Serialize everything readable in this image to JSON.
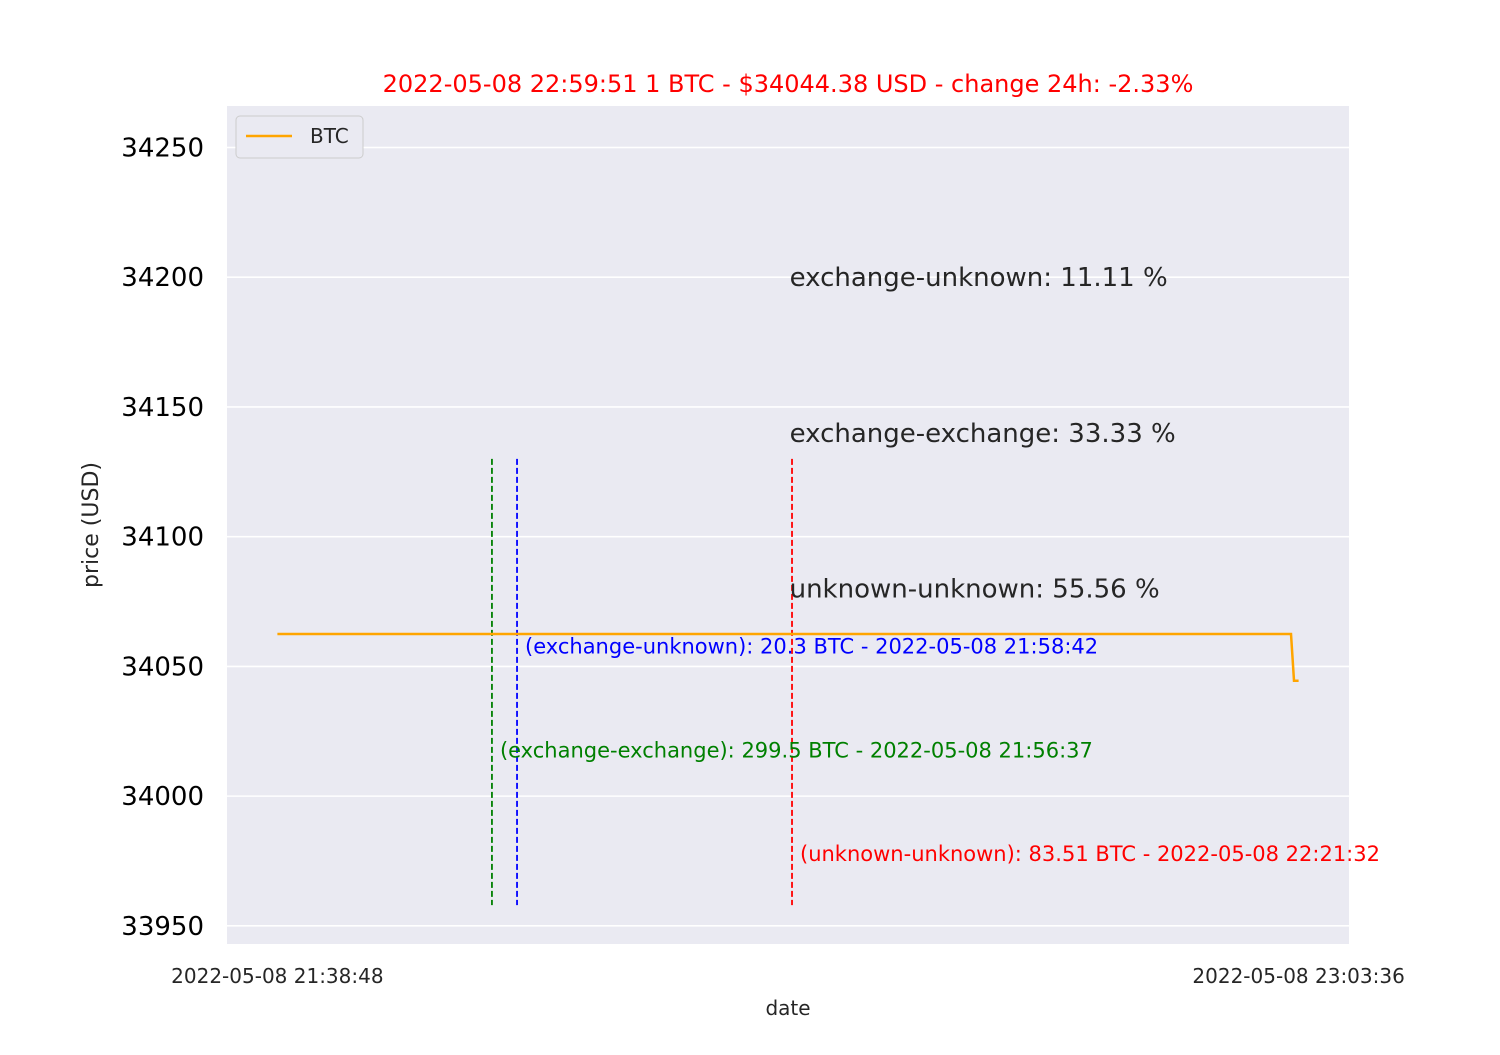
{
  "title": "2022-05-08  22:59:51    1 BTC - $34044.38 USD - change 24h: -2.33%",
  "colors": {
    "title": "#ff0000",
    "plot_bg": "#eaeaf2",
    "grid": "#ffffff",
    "btc": "#ffa500",
    "text": "#262626"
  },
  "chart_data": {
    "type": "line",
    "title": "2022-05-08  22:59:51    1 BTC - $34044.38 USD - change 24h: -2.33%",
    "xlabel": "date",
    "ylabel": "price (USD)",
    "ylim": [
      33943,
      34266
    ],
    "y_ticks": [
      33950,
      34000,
      34050,
      34100,
      34150,
      34200,
      34250
    ],
    "x_tick_labels": [
      "2022-05-08  21:38:48",
      "2022-05-08  23:03:36"
    ],
    "xlim": [
      "2022-05-08 21:34:37",
      "2022-05-08 23:07:47"
    ],
    "grid": true,
    "legend_position": "top-left",
    "series": [
      {
        "name": "BTC",
        "color": "#ffa500",
        "points": [
          {
            "x": "2022-05-08 21:38:48",
            "y": 34062.5
          },
          {
            "x": "2022-05-08 23:02:58",
            "y": 34062.5
          },
          {
            "x": "2022-05-08 23:03:13",
            "y": 34044.5
          },
          {
            "x": "2022-05-08 23:03:36",
            "y": 34044.5
          }
        ]
      }
    ],
    "markers": [
      {
        "label": "(exchange-exchange):  299.5 BTC - 2022-05-08 21:56:37",
        "x": "2022-05-08 21:56:37",
        "y": 34018,
        "color": "#008000"
      },
      {
        "label": "(exchange-unknown):  20.3 BTC - 2022-05-08 21:58:42",
        "x": "2022-05-08 21:58:42",
        "y": 34058,
        "color": "#0000ff"
      },
      {
        "label": "(unknown-unknown):  83.51 BTC - 2022-05-08 22:21:32",
        "x": "2022-05-08 22:21:32",
        "y": 33978,
        "color": "#ff0000"
      }
    ],
    "marker_span": [
      33958,
      34130
    ],
    "annotations": [
      {
        "text": "exchange-unknown: 11.11 %",
        "x": "2022-05-08 22:21:20",
        "y": 34200
      },
      {
        "text": "exchange-exchange: 33.33 %",
        "x": "2022-05-08 22:21:20",
        "y": 34140
      },
      {
        "text": "unknown-unknown: 55.56 %",
        "x": "2022-05-08 22:21:20",
        "y": 34080
      }
    ]
  }
}
